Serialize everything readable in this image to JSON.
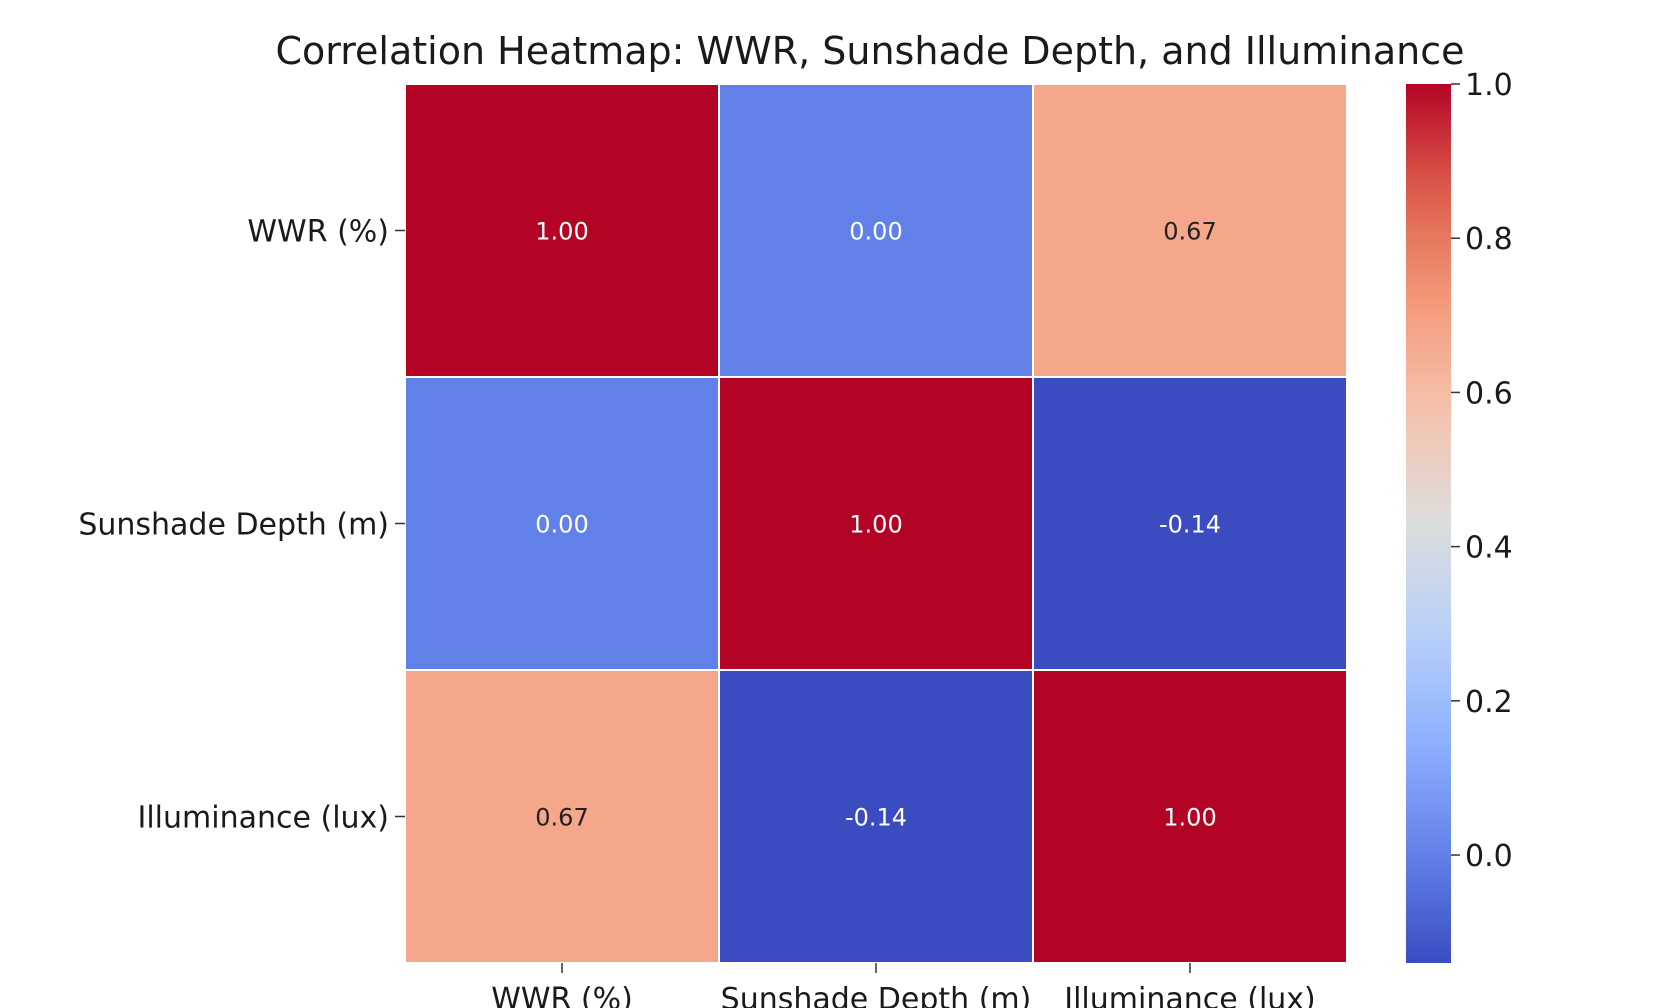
{
  "chart_data": {
    "type": "heatmap",
    "title": "Correlation Heatmap: WWR, Sunshade Depth, and Illuminance",
    "rows": [
      "WWR (%)",
      "Sunshade Depth (m)",
      "Illuminance (lux)"
    ],
    "columns": [
      "WWR (%)",
      "Sunshade Depth (m)",
      "Illuminance (lux)"
    ],
    "values": [
      [
        1.0,
        0.0,
        0.67
      ],
      [
        0.0,
        1.0,
        -0.14
      ],
      [
        0.67,
        -0.14,
        1.0
      ]
    ],
    "annotation_format": "2f",
    "colormap": "coolwarm",
    "colorbar": {
      "min": -0.14,
      "max": 1.0,
      "ticks": [
        0.0,
        0.2,
        0.4,
        0.6,
        0.8,
        1.0
      ],
      "tick_labels": [
        "0.0",
        "0.2",
        "0.4",
        "0.6",
        "0.8",
        "1.0"
      ]
    },
    "grid_line_color": "#ffffff"
  }
}
